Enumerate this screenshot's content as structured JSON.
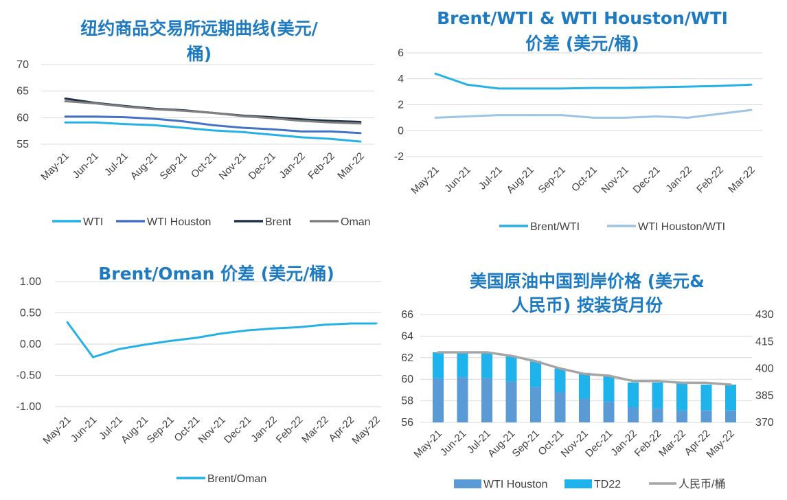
{
  "chart_data": [
    {
      "type": "line",
      "title_lines": [
        "纽约商品交易所远期曲线(美元/",
        "桶)"
      ],
      "categories": [
        "May-21",
        "Jun-21",
        "Jul-21",
        "Aug-21",
        "Sep-21",
        "Oct-21",
        "Nov-21",
        "Dec-21",
        "Jan-22",
        "Feb-22",
        "Mar-22"
      ],
      "ylim": [
        55,
        70
      ],
      "yticks": [
        "70",
        "65",
        "60",
        "55"
      ],
      "legend_position": "bottom",
      "series": [
        {
          "name": "WTI",
          "color": "#25b1e6",
          "values": [
            59.1,
            59.1,
            58.8,
            58.6,
            58.1,
            57.6,
            57.3,
            56.8,
            56.3,
            56.0,
            55.5
          ]
        },
        {
          "name": "WTI Houston",
          "color": "#4472c4",
          "values": [
            60.2,
            60.2,
            60.1,
            59.8,
            59.3,
            58.6,
            58.1,
            57.8,
            57.4,
            57.4,
            57.1
          ]
        },
        {
          "name": "Brent",
          "color": "#1f3147",
          "values": [
            63.6,
            62.8,
            62.2,
            61.7,
            61.4,
            60.9,
            60.4,
            60.1,
            59.7,
            59.4,
            59.2
          ]
        },
        {
          "name": "Oman",
          "color": "#7f7f7f",
          "values": [
            63.1,
            62.7,
            62.1,
            61.6,
            61.3,
            60.9,
            60.3,
            59.9,
            59.4,
            59.1,
            58.9
          ]
        }
      ]
    },
    {
      "type": "line",
      "title_lines": [
        "Brent/WTI & WTI Houston/WTI",
        "价差 (美元/桶)"
      ],
      "categories": [
        "May-21",
        "Jun-21",
        "Jul-21",
        "Aug-21",
        "Sep-21",
        "Oct-21",
        "Nov-21",
        "Dec-21",
        "Jan-22",
        "Feb-22",
        "Mar-22"
      ],
      "ylim": [
        -2,
        6
      ],
      "yticks": [
        "6",
        "4",
        "2",
        "0",
        "-2"
      ],
      "legend_position": "bottom",
      "series": [
        {
          "name": "Brent/WTI",
          "color": "#25b1e6",
          "values": [
            4.4,
            3.55,
            3.25,
            3.25,
            3.25,
            3.3,
            3.3,
            3.35,
            3.4,
            3.45,
            3.55
          ]
        },
        {
          "name": "WTI Houston/WTI",
          "color": "#9dc3e6",
          "values": [
            1.0,
            1.1,
            1.2,
            1.2,
            1.2,
            1.0,
            1.0,
            1.1,
            1.0,
            1.3,
            1.6
          ]
        }
      ]
    },
    {
      "type": "line",
      "title_lines": [
        "Brent/Oman 价差 (美元/桶)"
      ],
      "categories": [
        "May-21",
        "Jun-21",
        "Jul-21",
        "Aug-21",
        "Sep-21",
        "Oct-21",
        "Nov-21",
        "Dec-21",
        "Jan-22",
        "Feb-22",
        "Mar-22",
        "Apr-22",
        "May-22"
      ],
      "ylim": [
        -1.0,
        1.0
      ],
      "yticks": [
        "1.00",
        "0.50",
        "0.00",
        "-0.50",
        "-1.00"
      ],
      "legend_position": "bottom",
      "series": [
        {
          "name": "Brent/Oman",
          "color": "#25b1e6",
          "values": [
            0.35,
            -0.21,
            -0.08,
            -0.01,
            0.05,
            0.1,
            0.17,
            0.22,
            0.25,
            0.27,
            0.31,
            0.33,
            0.33
          ]
        }
      ]
    },
    {
      "type": "bar",
      "title_lines": [
        "美国原油中国到岸价格 (美元&",
        "人民币) 按装货月份"
      ],
      "categories": [
        "May-21",
        "Jun-21",
        "Jul-21",
        "Aug-21",
        "Sep-21",
        "Oct-21",
        "Nov-21",
        "Dec-21",
        "Jan-22",
        "Feb-22",
        "Mar-22",
        "Apr-22",
        "May-22"
      ],
      "ylim": [
        56,
        66
      ],
      "yticks": [
        "66",
        "64",
        "62",
        "60",
        "58",
        "56"
      ],
      "y2lim": [
        370,
        430
      ],
      "y2ticks": [
        "430",
        "415",
        "400",
        "385",
        "370"
      ],
      "legend_position": "bottom",
      "series": [
        {
          "name": "WTI Houston",
          "color": "#5b9bd5",
          "kind": "bar",
          "values": [
            60.1,
            60.2,
            60.1,
            59.8,
            59.3,
            58.8,
            58.2,
            57.9,
            57.4,
            57.3,
            57.1,
            57.1,
            57.1
          ]
        },
        {
          "name": "TD22",
          "color": "#1fb3ec",
          "kind": "bar-stack",
          "values": [
            2.4,
            2.3,
            2.4,
            2.4,
            2.4,
            2.2,
            2.4,
            2.4,
            2.3,
            2.4,
            2.5,
            2.4,
            2.4
          ]
        },
        {
          "name": "人民币/桶",
          "color": "#a5a5a5",
          "kind": "line",
          "axis": "right",
          "values": [
            409,
            409,
            409,
            407,
            404,
            400,
            397,
            396,
            393,
            393,
            392,
            392,
            391
          ]
        }
      ]
    }
  ]
}
